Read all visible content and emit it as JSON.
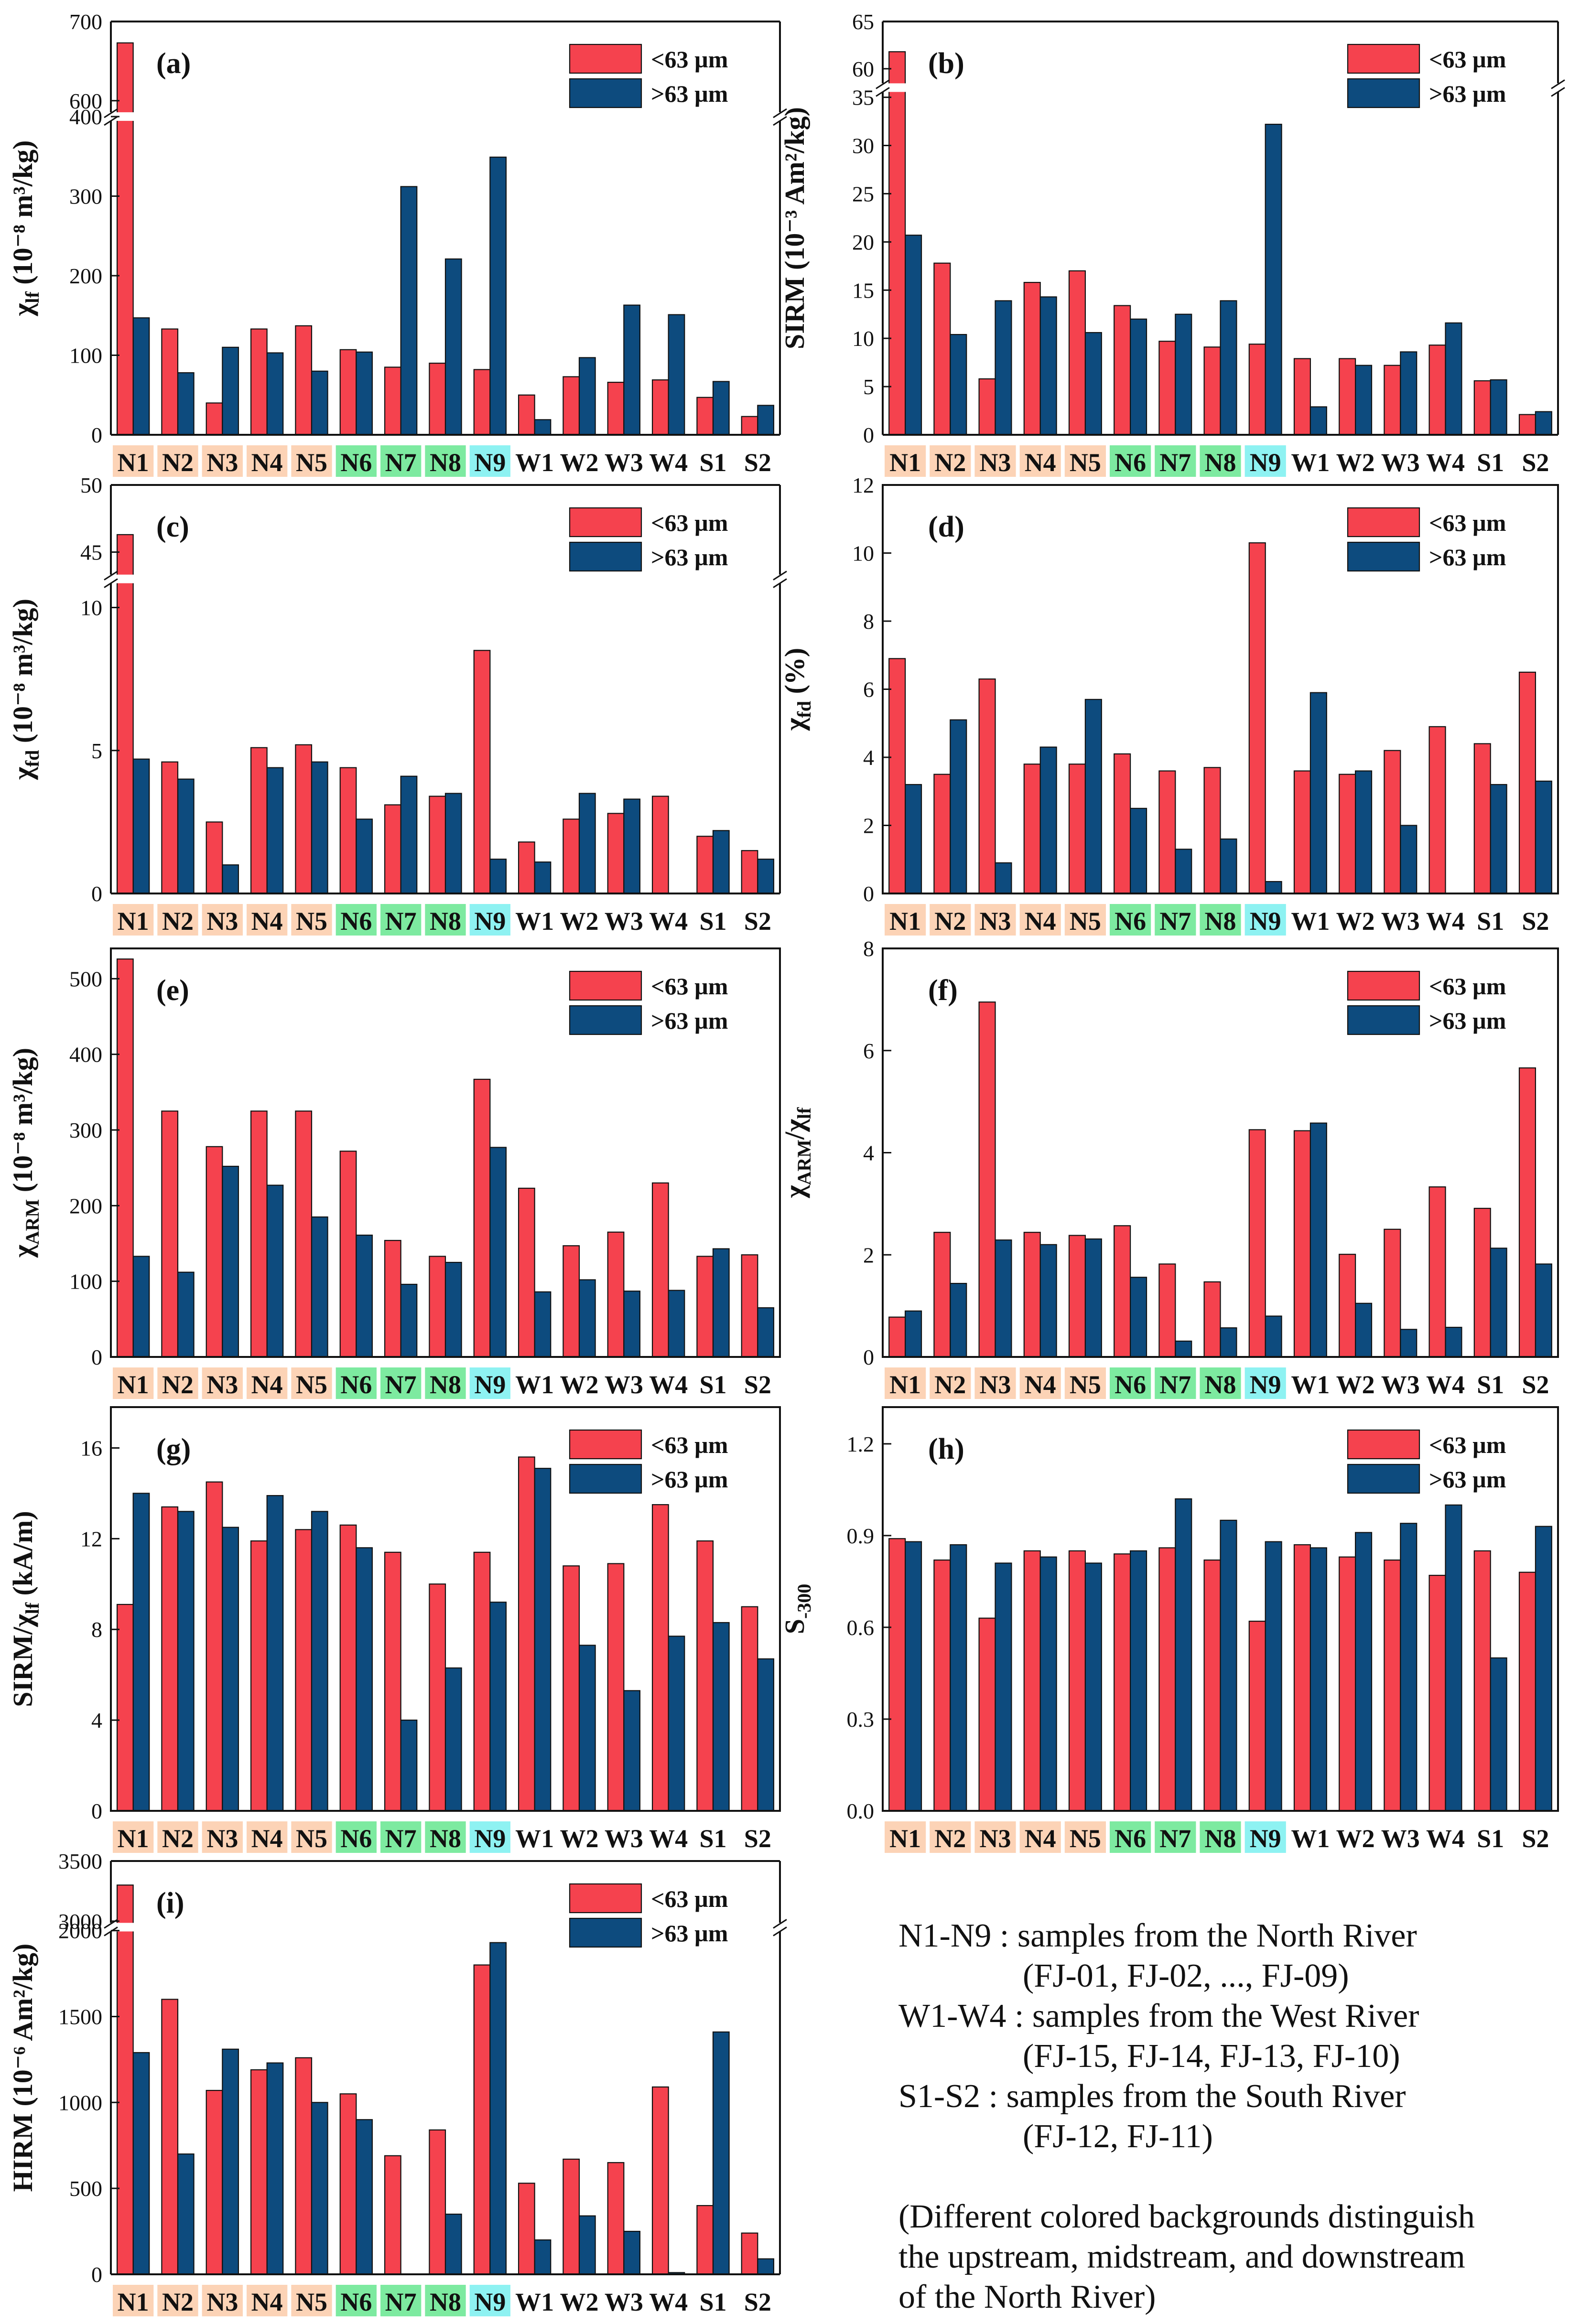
{
  "colors": {
    "fine": "#f5424e",
    "coarse": "#0d4b7e",
    "upstream": "#fcd3b6",
    "midstream": "#7deaa0",
    "downstream": "#8ef2f2"
  },
  "series_names": [
    "<63 µm",
    ">63 µm"
  ],
  "chart_data": [
    {
      "type": "bar",
      "panel": "(a)",
      "ylabel": "χlf (10⁻⁸ m³/kg)",
      "categories": [
        "N1",
        "N2",
        "N3",
        "N4",
        "N5",
        "N6",
        "N7",
        "N8",
        "N9",
        "W1",
        "W2",
        "W3",
        "W4",
        "S1",
        "S2"
      ],
      "series": [
        {
          "name": "<63 µm",
          "values": [
            673,
            133,
            40,
            133,
            137,
            107,
            85,
            90,
            82,
            50,
            73,
            66,
            69,
            47,
            23
          ]
        },
        {
          "name": ">63 µm",
          "values": [
            147,
            78,
            110,
            103,
            80,
            104,
            312,
            221,
            349,
            19,
            97,
            163,
            151,
            67,
            37
          ]
        }
      ],
      "lower_ticks": [
        0,
        100,
        200,
        300,
        400
      ],
      "upper_ticks": [
        600,
        700
      ],
      "break": [
        400,
        580
      ]
    },
    {
      "type": "bar",
      "panel": "(b)",
      "ylabel": "SIRM (10⁻³ Am²/kg)",
      "categories": [
        "N1",
        "N2",
        "N3",
        "N4",
        "N5",
        "N6",
        "N7",
        "N8",
        "N9",
        "W1",
        "W2",
        "W3",
        "W4",
        "S1",
        "S2"
      ],
      "series": [
        {
          "name": "<63 µm",
          "values": [
            61.8,
            17.8,
            5.8,
            15.8,
            17.0,
            13.4,
            9.7,
            9.1,
            9.4,
            7.9,
            7.9,
            7.2,
            9.3,
            5.6,
            2.1
          ]
        },
        {
          "name": ">63 µm",
          "values": [
            20.7,
            10.4,
            13.9,
            14.3,
            10.6,
            12.0,
            12.5,
            13.9,
            32.2,
            2.9,
            7.2,
            8.6,
            11.6,
            5.7,
            2.4
          ]
        }
      ],
      "lower_ticks": [
        0,
        5,
        10,
        15,
        20,
        25,
        30,
        35
      ],
      "upper_ticks": [
        60,
        65
      ],
      "break": [
        36,
        58
      ]
    },
    {
      "type": "bar",
      "panel": "(c)",
      "ylabel": "χfd (10⁻⁸ m³/kg)",
      "categories": [
        "N1",
        "N2",
        "N3",
        "N4",
        "N5",
        "N6",
        "N7",
        "N8",
        "N9",
        "W1",
        "W2",
        "W3",
        "W4",
        "S1",
        "S2"
      ],
      "series": [
        {
          "name": "<63 µm",
          "values": [
            46.3,
            4.6,
            2.5,
            5.1,
            5.2,
            4.4,
            3.1,
            3.4,
            8.5,
            1.8,
            2.6,
            2.8,
            3.4,
            2.0,
            1.5
          ]
        },
        {
          "name": ">63 µm",
          "values": [
            4.7,
            4.0,
            1.0,
            4.4,
            4.6,
            2.6,
            4.1,
            3.5,
            1.2,
            1.1,
            3.5,
            3.3,
            0,
            2.2,
            1.2
          ]
        }
      ],
      "lower_ticks": [
        0,
        5,
        10
      ],
      "upper_ticks": [
        45,
        50
      ],
      "break": [
        11,
        43
      ]
    },
    {
      "type": "bar",
      "panel": "(d)",
      "ylabel": "χfd (%)",
      "categories": [
        "N1",
        "N2",
        "N3",
        "N4",
        "N5",
        "N6",
        "N7",
        "N8",
        "N9",
        "W1",
        "W2",
        "W3",
        "W4",
        "S1",
        "S2"
      ],
      "series": [
        {
          "name": "<63 µm",
          "values": [
            6.9,
            3.5,
            6.3,
            3.8,
            3.8,
            4.1,
            3.6,
            3.7,
            10.3,
            3.6,
            3.5,
            4.2,
            4.9,
            4.4,
            6.5
          ]
        },
        {
          "name": ">63 µm",
          "values": [
            3.2,
            5.1,
            0.9,
            4.3,
            5.7,
            2.5,
            1.3,
            1.6,
            0.35,
            5.9,
            3.6,
            2.0,
            0,
            3.2,
            3.3
          ]
        }
      ],
      "ylim": [
        0,
        12
      ],
      "ticks": [
        0,
        2,
        4,
        6,
        8,
        10,
        12
      ]
    },
    {
      "type": "bar",
      "panel": "(e)",
      "ylabel": "χARM (10⁻⁸ m³/kg)",
      "categories": [
        "N1",
        "N2",
        "N3",
        "N4",
        "N5",
        "N6",
        "N7",
        "N8",
        "N9",
        "W1",
        "W2",
        "W3",
        "W4",
        "S1",
        "S2"
      ],
      "series": [
        {
          "name": "<63 µm",
          "values": [
            526,
            325,
            278,
            325,
            325,
            272,
            154,
            133,
            367,
            223,
            147,
            165,
            230,
            133,
            135
          ]
        },
        {
          "name": ">63 µm",
          "values": [
            133,
            112,
            252,
            227,
            185,
            161,
            96,
            125,
            277,
            86,
            102,
            87,
            88,
            143,
            65
          ]
        }
      ],
      "ylim": [
        0,
        540
      ],
      "ticks": [
        0,
        100,
        200,
        300,
        400,
        500
      ]
    },
    {
      "type": "bar",
      "panel": "(f)",
      "ylabel": "χARM/χlf",
      "categories": [
        "N1",
        "N2",
        "N3",
        "N4",
        "N5",
        "N6",
        "N7",
        "N8",
        "N9",
        "W1",
        "W2",
        "W3",
        "W4",
        "S1",
        "S2"
      ],
      "series": [
        {
          "name": "<63 µm",
          "values": [
            0.78,
            2.44,
            6.95,
            2.44,
            2.38,
            2.57,
            1.82,
            1.47,
            4.45,
            4.43,
            2.01,
            2.5,
            3.33,
            2.91,
            5.66
          ]
        },
        {
          "name": ">63 µm",
          "values": [
            0.9,
            1.44,
            2.29,
            2.2,
            2.31,
            1.56,
            0.31,
            0.57,
            0.8,
            4.58,
            1.05,
            0.54,
            0.58,
            2.13,
            1.82
          ]
        }
      ],
      "ylim": [
        0,
        8
      ],
      "ticks": [
        0,
        2,
        4,
        6,
        8
      ]
    },
    {
      "type": "bar",
      "panel": "(g)",
      "ylabel": "SIRM/χlf (kA/m)",
      "categories": [
        "N1",
        "N2",
        "N3",
        "N4",
        "N5",
        "N6",
        "N7",
        "N8",
        "N9",
        "W1",
        "W2",
        "W3",
        "W4",
        "S1",
        "S2"
      ],
      "series": [
        {
          "name": "<63 µm",
          "values": [
            9.1,
            13.4,
            14.5,
            11.9,
            12.4,
            12.6,
            11.4,
            10.0,
            11.4,
            15.6,
            10.8,
            10.9,
            13.5,
            11.9,
            9.0
          ]
        },
        {
          "name": ">63 µm",
          "values": [
            14.0,
            13.2,
            12.5,
            13.9,
            13.2,
            11.6,
            4.0,
            6.3,
            9.2,
            15.1,
            7.3,
            5.3,
            7.7,
            8.3,
            6.7
          ]
        }
      ],
      "ylim": [
        0,
        17.8
      ],
      "ticks": [
        0,
        4,
        8,
        12,
        16
      ]
    },
    {
      "type": "bar",
      "panel": "(h)",
      "ylabel": "S-300",
      "categories": [
        "N1",
        "N2",
        "N3",
        "N4",
        "N5",
        "N6",
        "N7",
        "N8",
        "N9",
        "W1",
        "W2",
        "W3",
        "W4",
        "S1",
        "S2"
      ],
      "series": [
        {
          "name": "<63 µm",
          "values": [
            0.89,
            0.82,
            0.63,
            0.85,
            0.85,
            0.84,
            0.86,
            0.82,
            0.62,
            0.87,
            0.83,
            0.82,
            0.77,
            0.85,
            0.78
          ]
        },
        {
          "name": ">63 µm",
          "values": [
            0.88,
            0.87,
            0.81,
            0.83,
            0.81,
            0.85,
            1.02,
            0.95,
            0.88,
            0.86,
            0.91,
            0.94,
            1.0,
            0.5,
            0.93
          ]
        }
      ],
      "ylim": [
        0,
        1.32
      ],
      "ticks": [
        "0.0",
        "0.3",
        "0.6",
        "0.9",
        "1.2"
      ]
    },
    {
      "type": "bar",
      "panel": "(i)",
      "ylabel": "HIRM (10⁻⁶ Am²/kg)",
      "categories": [
        "N1",
        "N2",
        "N3",
        "N4",
        "N5",
        "N6",
        "N7",
        "N8",
        "N9",
        "W1",
        "W2",
        "W3",
        "W4",
        "S1",
        "S2"
      ],
      "series": [
        {
          "name": "<63 µm",
          "values": [
            3300,
            1600,
            1070,
            1190,
            1260,
            1050,
            690,
            840,
            1800,
            530,
            670,
            650,
            1090,
            400,
            240
          ]
        },
        {
          "name": ">63 µm",
          "values": [
            1290,
            700,
            1310,
            1230,
            1000,
            900,
            0,
            350,
            1930,
            200,
            340,
            250,
            10,
            1410,
            90
          ]
        }
      ],
      "lower_ticks": [
        0,
        500,
        1000,
        1500,
        2000
      ],
      "upper_ticks": [
        3000,
        3500
      ],
      "break": [
        2020,
        2950
      ]
    }
  ],
  "notes": {
    "line1": "N1-N9 : samples from the North River",
    "line2": "(FJ-01, FJ-02, ..., FJ-09)",
    "line3": "W1-W4 : samples from the West River",
    "line4": "(FJ-15, FJ-14, FJ-13, FJ-10)",
    "line5": "S1-S2 : samples from the South River",
    "line6": "(FJ-12, FJ-11)",
    "line7": "(Different colored backgrounds distinguish",
    "line8": "the upstream, midstream, and downstream",
    "line9": "of the North River)"
  }
}
